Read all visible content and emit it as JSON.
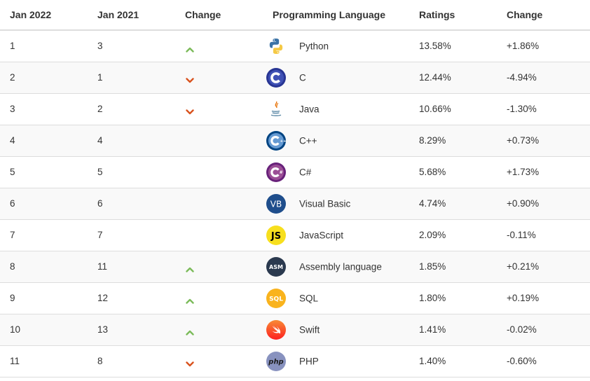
{
  "headers": {
    "jan2022": "Jan 2022",
    "jan2021": "Jan 2021",
    "change": "Change",
    "language": "Programming Language",
    "ratings": "Ratings",
    "rating_change": "Change"
  },
  "colors": {
    "up": "#7cbb5a",
    "down": "#d9531e",
    "header_border": "#dddddd",
    "row_alt": "#f9f9f9"
  },
  "rows": [
    {
      "jan2022": "1",
      "jan2021": "3",
      "trend": "up",
      "icon": "python-logo-icon",
      "language": "Python",
      "ratings": "13.58%",
      "change": "+1.86%"
    },
    {
      "jan2022": "2",
      "jan2021": "1",
      "trend": "down",
      "icon": "c-logo-icon",
      "language": "C",
      "ratings": "12.44%",
      "change": "-4.94%"
    },
    {
      "jan2022": "3",
      "jan2021": "2",
      "trend": "down",
      "icon": "java-logo-icon",
      "language": "Java",
      "ratings": "10.66%",
      "change": "-1.30%"
    },
    {
      "jan2022": "4",
      "jan2021": "4",
      "trend": "none",
      "icon": "cpp-logo-icon",
      "language": "C++",
      "ratings": "8.29%",
      "change": "+0.73%"
    },
    {
      "jan2022": "5",
      "jan2021": "5",
      "trend": "none",
      "icon": "csharp-logo-icon",
      "language": "C#",
      "ratings": "5.68%",
      "change": "+1.73%"
    },
    {
      "jan2022": "6",
      "jan2021": "6",
      "trend": "none",
      "icon": "visual-basic-logo-icon",
      "language": "Visual Basic",
      "ratings": "4.74%",
      "change": "+0.90%"
    },
    {
      "jan2022": "7",
      "jan2021": "7",
      "trend": "none",
      "icon": "javascript-logo-icon",
      "language": "JavaScript",
      "ratings": "2.09%",
      "change": "-0.11%"
    },
    {
      "jan2022": "8",
      "jan2021": "11",
      "trend": "up",
      "icon": "assembly-logo-icon",
      "language": "Assembly language",
      "ratings": "1.85%",
      "change": "+0.21%"
    },
    {
      "jan2022": "9",
      "jan2021": "12",
      "trend": "up",
      "icon": "sql-logo-icon",
      "language": "SQL",
      "ratings": "1.80%",
      "change": "+0.19%"
    },
    {
      "jan2022": "10",
      "jan2021": "13",
      "trend": "up",
      "icon": "swift-logo-icon",
      "language": "Swift",
      "ratings": "1.41%",
      "change": "-0.02%"
    },
    {
      "jan2022": "11",
      "jan2021": "8",
      "trend": "down",
      "icon": "php-logo-icon",
      "language": "PHP",
      "ratings": "1.40%",
      "change": "-0.60%"
    }
  ],
  "logos": {
    "visual_basic": "VB",
    "javascript": "JS",
    "assembly": "ASM",
    "sql": "SQL",
    "php": "php"
  }
}
